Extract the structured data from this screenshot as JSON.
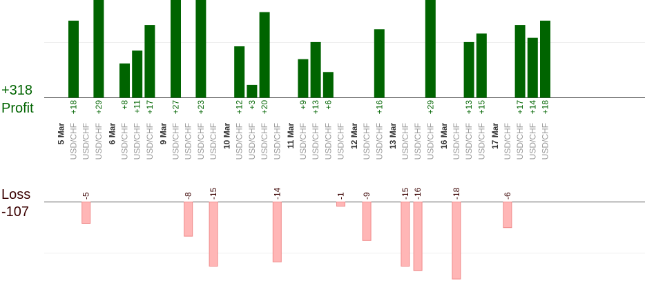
{
  "chart_data": {
    "type": "bar",
    "total_profit": "+318",
    "profit_label": "Profit",
    "loss_label": "Loss",
    "total_loss": "-107",
    "colors": {
      "profit_bar": "#006400",
      "loss_bar": "#ffb6b6",
      "profit_text": "#006400",
      "loss_text": "#3a0000"
    },
    "trades": [
      {
        "date": "5 Mar",
        "pair": "USD/CHF",
        "value": 18
      },
      {
        "pair": "USD/CHF",
        "value": -5
      },
      {
        "pair": "USD/CHF",
        "value": 29
      },
      {
        "date": "6 Mar",
        "pair": "USD/CHF",
        "value": 8
      },
      {
        "pair": "USD/CHF",
        "value": 11
      },
      {
        "pair": "USD/CHF",
        "value": 17
      },
      {
        "date": "9 Mar",
        "pair": "USD/CHF",
        "value": 27
      },
      {
        "pair": "USD/CHF",
        "value": -8
      },
      {
        "pair": "USD/CHF",
        "value": 23
      },
      {
        "pair": "USD/CHF",
        "value": -15
      },
      {
        "date": "10 Mar",
        "pair": "USD/CHF",
        "value": 12
      },
      {
        "pair": "USD/CHF",
        "value": 3
      },
      {
        "pair": "USD/CHF",
        "value": 20
      },
      {
        "pair": "USD/CHF",
        "value": -14
      },
      {
        "date": "11 Mar",
        "pair": "USD/CHF",
        "value": 9
      },
      {
        "pair": "USD/CHF",
        "value": 13
      },
      {
        "pair": "USD/CHF",
        "value": 6
      },
      {
        "pair": "USD/CHF",
        "value": -1
      },
      {
        "date": "12 Mar",
        "pair": "USD/CHF",
        "value": -9
      },
      {
        "pair": "USD/CHF",
        "value": 16
      },
      {
        "date": "13 Mar",
        "pair": "USD/CHF",
        "value": -15
      },
      {
        "pair": "USD/CHF",
        "value": -16
      },
      {
        "pair": "USD/CHF",
        "value": 29
      },
      {
        "date": "16 Mar",
        "pair": "USD/CHF",
        "value": -18
      },
      {
        "pair": "USD/CHF",
        "value": 13
      },
      {
        "pair": "USD/CHF",
        "value": 15
      },
      {
        "date": "17 Mar",
        "pair": "USD/CHF",
        "value": -6
      },
      {
        "pair": "USD/CHF",
        "value": 17
      },
      {
        "pair": "USD/CHF",
        "value": 14
      },
      {
        "pair": "USD/CHF",
        "value": 18
      }
    ]
  }
}
